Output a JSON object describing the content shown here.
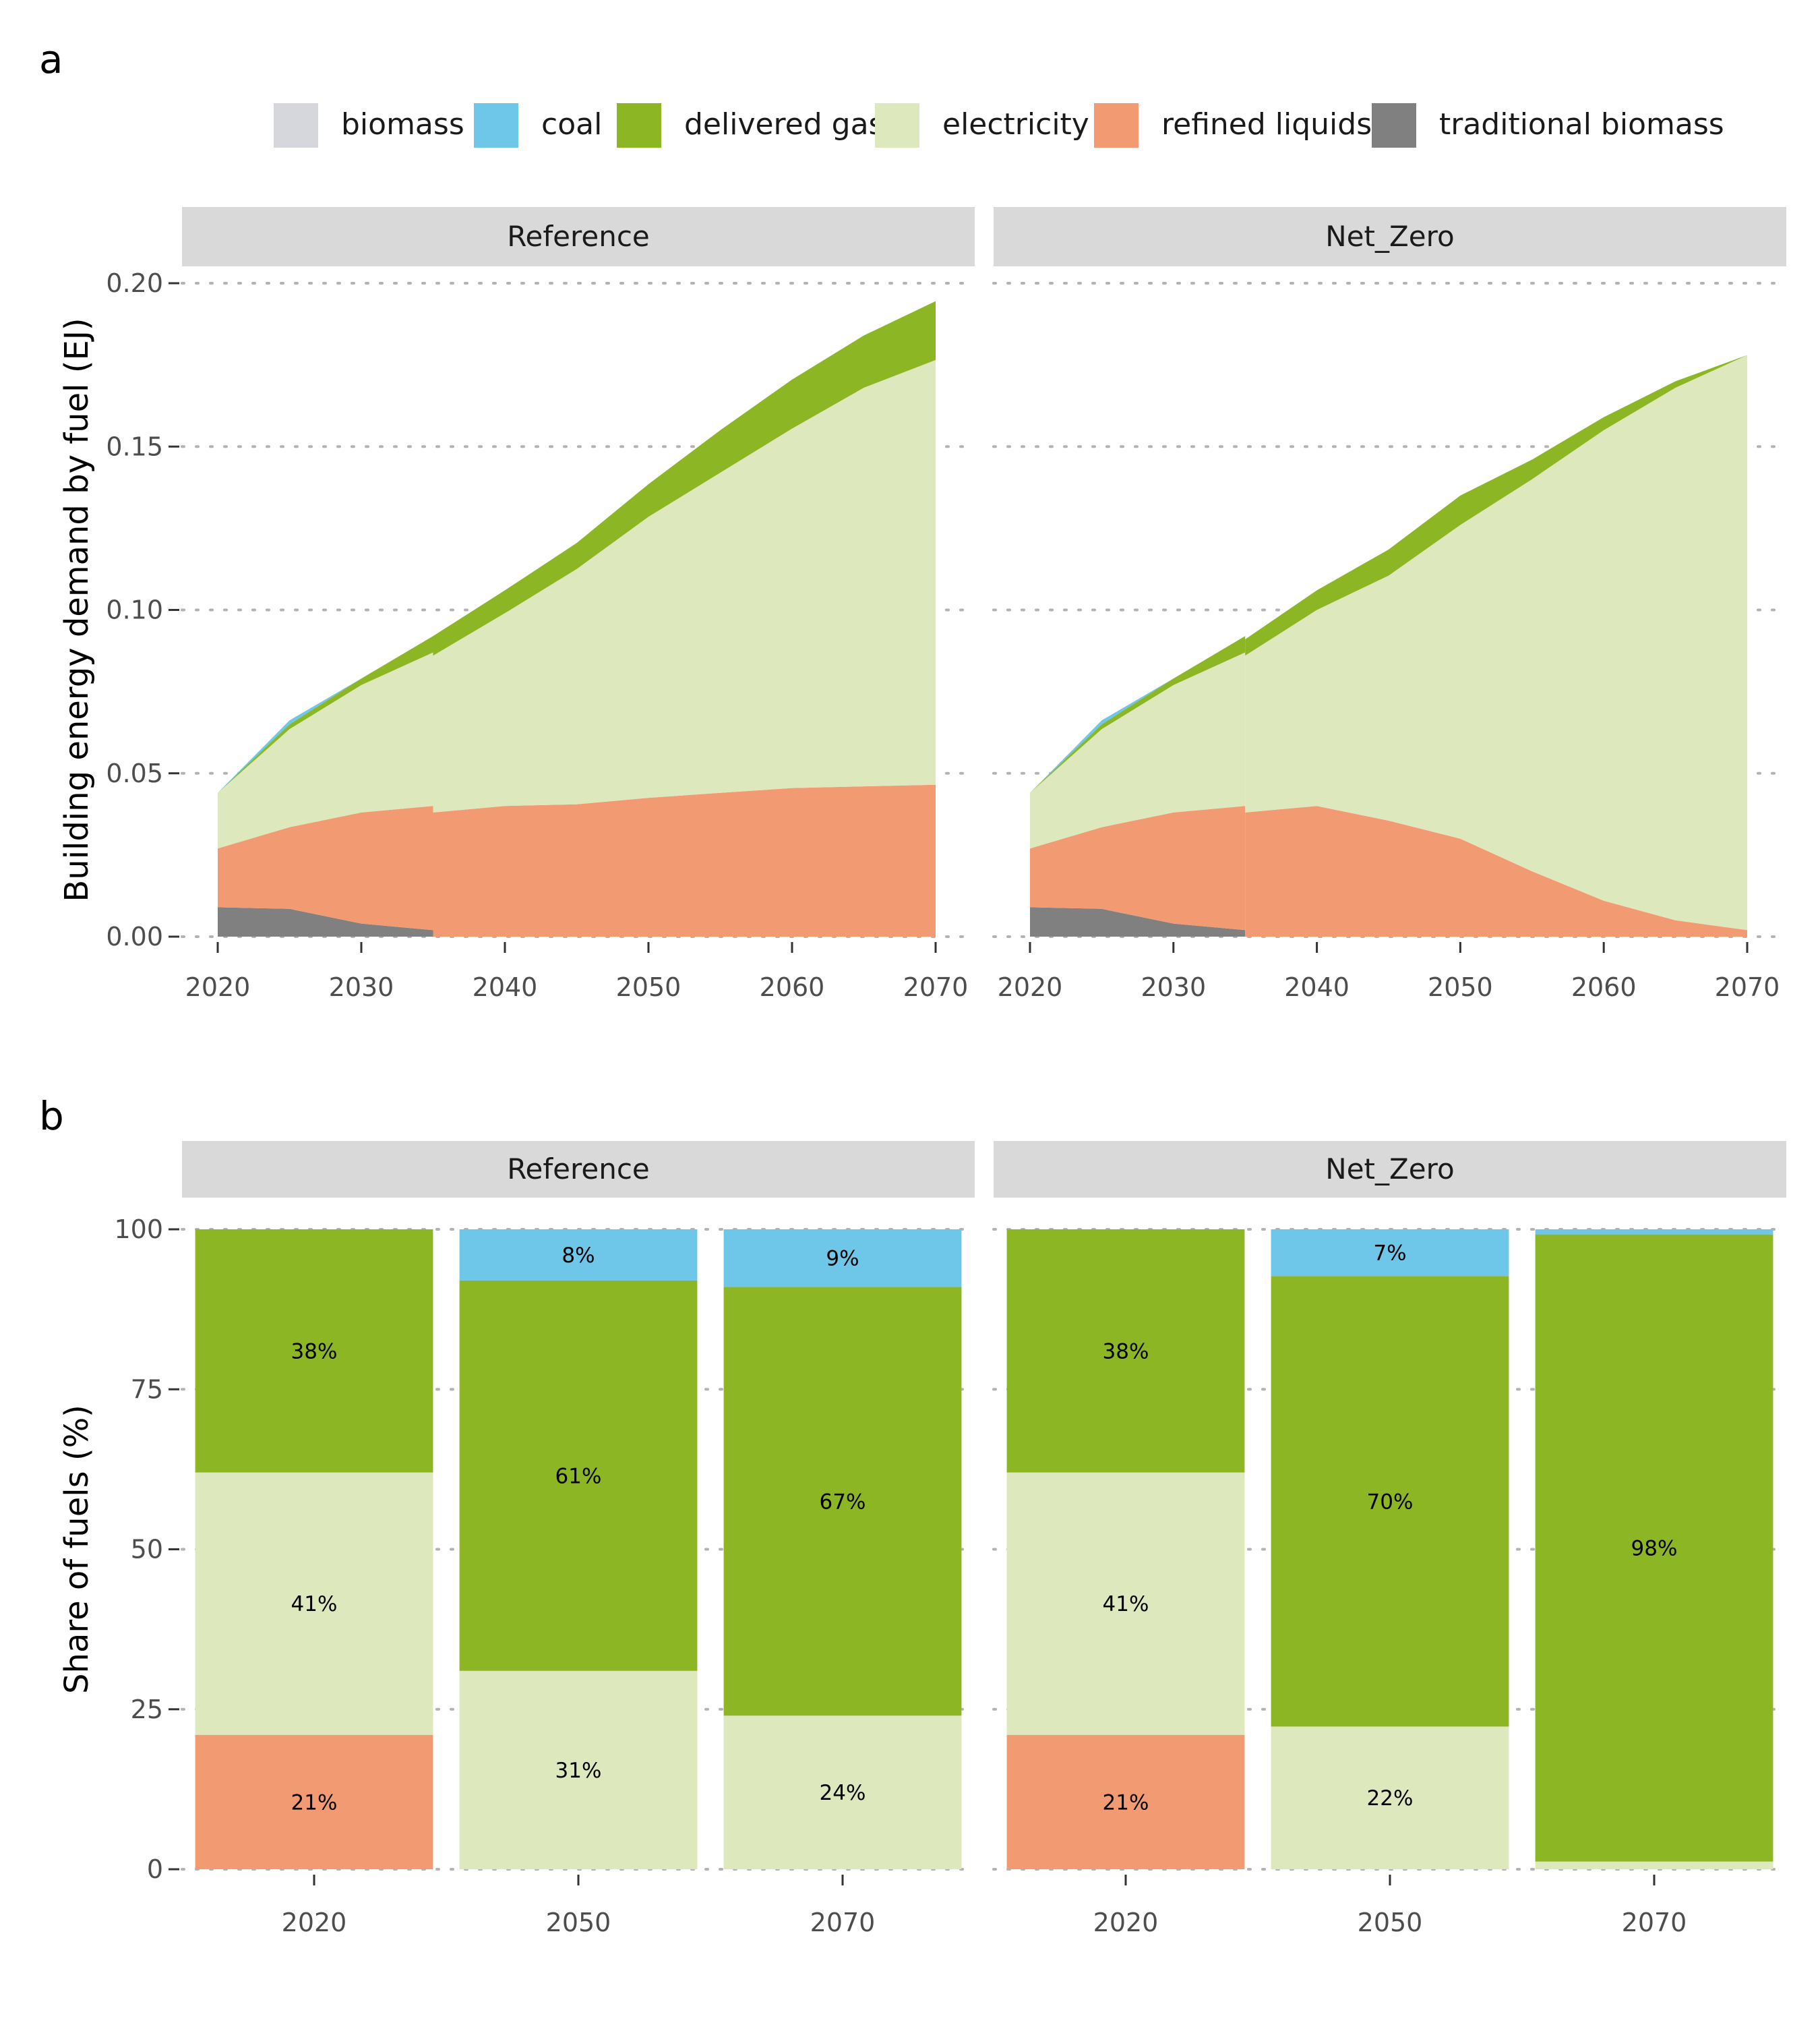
{
  "panel_labels": {
    "a": "a",
    "b": "b"
  },
  "legend": [
    {
      "name": "biomass",
      "color": "#d6d7dc"
    },
    {
      "name": "coal",
      "color": "#6ec6e9"
    },
    {
      "name": "delivered gas",
      "color": "#8db625"
    },
    {
      "name": "electricity",
      "color": "#dde8bc"
    },
    {
      "name": "refined liquids",
      "color": "#f29b72"
    },
    {
      "name": "traditional biomass",
      "color": "#808080"
    }
  ],
  "chart_data": [
    {
      "id": "a",
      "type": "area",
      "stacked": true,
      "ylabel": "Building energy demand by fuel (EJ)",
      "ylim": [
        0,
        0.2
      ],
      "yticks": [
        0.0,
        0.05,
        0.1,
        0.15,
        0.2
      ],
      "ytick_labels": [
        "0.00",
        "0.05",
        "0.10",
        "0.15",
        "0.20"
      ],
      "xlim": [
        2020,
        2070
      ],
      "xticks": [
        2020,
        2030,
        2040,
        2050,
        2060,
        2070
      ],
      "grid": "dotted horizontal",
      "facets": [
        {
          "name": "Reference",
          "segments": [
            {
              "x": [
                2020,
                2025,
                2030,
                2035
              ],
              "series": [
                {
                  "name": "traditional biomass",
                  "values": [
                    0.009,
                    0.0085,
                    0.004,
                    0.002
                  ]
                },
                {
                  "name": "refined liquids",
                  "values": [
                    0.018,
                    0.025,
                    0.034,
                    0.038
                  ]
                },
                {
                  "name": "electricity",
                  "values": [
                    0.017,
                    0.03,
                    0.039,
                    0.047
                  ]
                },
                {
                  "name": "delivered gas",
                  "values": [
                    0.0,
                    0.0015,
                    0.002,
                    0.005
                  ]
                },
                {
                  "name": "coal",
                  "values": [
                    0.0,
                    0.0012,
                    0.0,
                    0.0
                  ]
                }
              ]
            },
            {
              "x": [
                2035,
                2040,
                2045,
                2050,
                2055,
                2060,
                2065,
                2070
              ],
              "series": [
                {
                  "name": "refined liquids",
                  "values": [
                    0.038,
                    0.04,
                    0.0405,
                    0.0425,
                    0.044,
                    0.0455,
                    0.046,
                    0.0465
                  ]
                },
                {
                  "name": "electricity",
                  "values": [
                    0.048,
                    0.059,
                    0.072,
                    0.086,
                    0.098,
                    0.11,
                    0.122,
                    0.13
                  ]
                },
                {
                  "name": "delivered gas",
                  "values": [
                    0.006,
                    0.007,
                    0.008,
                    0.01,
                    0.013,
                    0.015,
                    0.016,
                    0.018
                  ]
                }
              ]
            }
          ]
        },
        {
          "name": "Net_Zero",
          "segments": [
            {
              "x": [
                2020,
                2025,
                2030,
                2035
              ],
              "series": [
                {
                  "name": "traditional biomass",
                  "values": [
                    0.009,
                    0.0085,
                    0.004,
                    0.002
                  ]
                },
                {
                  "name": "refined liquids",
                  "values": [
                    0.018,
                    0.025,
                    0.034,
                    0.038
                  ]
                },
                {
                  "name": "electricity",
                  "values": [
                    0.017,
                    0.03,
                    0.039,
                    0.047
                  ]
                },
                {
                  "name": "delivered gas",
                  "values": [
                    0.0,
                    0.0015,
                    0.002,
                    0.005
                  ]
                },
                {
                  "name": "coal",
                  "values": [
                    0.0,
                    0.0012,
                    0.0,
                    0.0
                  ]
                }
              ]
            },
            {
              "x": [
                2035,
                2040,
                2045,
                2050,
                2055,
                2060,
                2065,
                2070
              ],
              "series": [
                {
                  "name": "refined liquids",
                  "values": [
                    0.038,
                    0.04,
                    0.0355,
                    0.03,
                    0.02,
                    0.011,
                    0.005,
                    0.002
                  ]
                },
                {
                  "name": "electricity",
                  "values": [
                    0.048,
                    0.06,
                    0.075,
                    0.096,
                    0.12,
                    0.144,
                    0.163,
                    0.176
                  ]
                },
                {
                  "name": "delivered gas",
                  "values": [
                    0.005,
                    0.006,
                    0.008,
                    0.009,
                    0.006,
                    0.004,
                    0.002,
                    0.0
                  ]
                }
              ]
            }
          ]
        }
      ]
    },
    {
      "id": "b",
      "type": "bar",
      "stacked": true,
      "ylabel": "Share of fuels (%)",
      "ylim": [
        0,
        100
      ],
      "yticks": [
        0,
        25,
        50,
        75,
        100
      ],
      "ytick_labels": [
        "0",
        "25",
        "50",
        "75",
        "100"
      ],
      "categories": [
        "2020",
        "2050",
        "2070"
      ],
      "grid": "dotted horizontal",
      "facets": [
        {
          "name": "Reference",
          "bars": [
            {
              "category": "2020",
              "stack": [
                {
                  "name": "refined liquids",
                  "value": 21,
                  "label": "21%"
                },
                {
                  "name": "electricity",
                  "value": 41,
                  "label": "41%"
                },
                {
                  "name": "delivered gas",
                  "value": 38,
                  "label": "38%"
                }
              ]
            },
            {
              "category": "2050",
              "stack": [
                {
                  "name": "electricity",
                  "value": 31,
                  "label": "31%"
                },
                {
                  "name": "delivered gas",
                  "value": 61,
                  "label": "61%"
                },
                {
                  "name": "coal",
                  "value": 8,
                  "label": "8%"
                }
              ]
            },
            {
              "category": "2070",
              "stack": [
                {
                  "name": "electricity",
                  "value": 24,
                  "label": "24%"
                },
                {
                  "name": "delivered gas",
                  "value": 67,
                  "label": "67%"
                },
                {
                  "name": "coal",
                  "value": 9,
                  "label": "9%"
                }
              ]
            }
          ]
        },
        {
          "name": "Net_Zero",
          "bars": [
            {
              "category": "2020",
              "stack": [
                {
                  "name": "refined liquids",
                  "value": 21,
                  "label": "21%"
                },
                {
                  "name": "electricity",
                  "value": 41,
                  "label": "41%"
                },
                {
                  "name": "delivered gas",
                  "value": 38,
                  "label": "38%"
                }
              ]
            },
            {
              "category": "2050",
              "stack": [
                {
                  "name": "electricity",
                  "value": 22.3,
                  "label": "22%"
                },
                {
                  "name": "delivered gas",
                  "value": 70.4,
                  "label": "70%"
                },
                {
                  "name": "coal",
                  "value": 7.3,
                  "label": "7%"
                }
              ]
            },
            {
              "category": "2070",
              "stack": [
                {
                  "name": "electricity",
                  "value": 1.2,
                  "label": ""
                },
                {
                  "name": "delivered gas",
                  "value": 98,
                  "label": "98%"
                },
                {
                  "name": "coal",
                  "value": 0.8,
                  "label": ""
                }
              ]
            }
          ]
        }
      ]
    }
  ]
}
